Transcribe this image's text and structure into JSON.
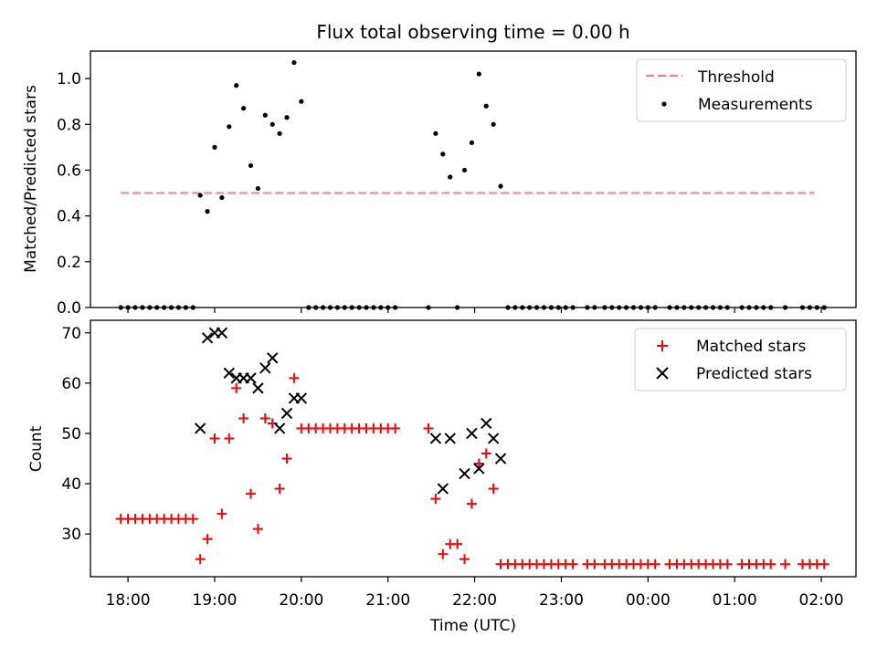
{
  "chart_data": [
    {
      "type": "scatter",
      "title": "Flux total observing time = 0.00 h",
      "xlabel": "",
      "ylabel": "Matched/Predicted stars",
      "xlim": [
        "17:34",
        "02:24"
      ],
      "ylim": [
        0,
        1.12
      ],
      "yticks": [
        "0.0",
        "0.2",
        "0.4",
        "0.6",
        "0.8",
        "1.0"
      ],
      "legend": {
        "position": "top-right",
        "entries": [
          {
            "label": "Threshold",
            "style": "dashed-line",
            "color": "#ff7f7f"
          },
          {
            "label": "Measurements",
            "style": "dot",
            "color": "#000000"
          }
        ]
      },
      "threshold": {
        "value": 0.5,
        "x_start": "17:55",
        "x_end": "01:55"
      },
      "series": [
        {
          "name": "Measurements",
          "color": "#000000",
          "points": [
            [
              "17:55",
              0
            ],
            [
              "18:00",
              0
            ],
            [
              "18:05",
              0
            ],
            [
              "18:10",
              0
            ],
            [
              "18:15",
              0
            ],
            [
              "18:20",
              0
            ],
            [
              "18:25",
              0
            ],
            [
              "18:30",
              0
            ],
            [
              "18:35",
              0
            ],
            [
              "18:40",
              0
            ],
            [
              "18:45",
              0
            ],
            [
              "18:50",
              0.49
            ],
            [
              "18:55",
              0.42
            ],
            [
              "19:00",
              0.7
            ],
            [
              "19:05",
              0.48
            ],
            [
              "19:10",
              0.79
            ],
            [
              "19:15",
              0.97
            ],
            [
              "19:20",
              0.87
            ],
            [
              "19:25",
              0.62
            ],
            [
              "19:30",
              0.52
            ],
            [
              "19:35",
              0.84
            ],
            [
              "19:40",
              0.8
            ],
            [
              "19:45",
              0.76
            ],
            [
              "19:50",
              0.83
            ],
            [
              "19:55",
              1.07
            ],
            [
              "20:00",
              0.9
            ],
            [
              "20:05",
              0
            ],
            [
              "20:10",
              0
            ],
            [
              "20:15",
              0
            ],
            [
              "20:20",
              0
            ],
            [
              "20:25",
              0
            ],
            [
              "20:30",
              0
            ],
            [
              "20:35",
              0
            ],
            [
              "20:40",
              0
            ],
            [
              "20:45",
              0
            ],
            [
              "20:50",
              0
            ],
            [
              "20:55",
              0
            ],
            [
              "21:00",
              0
            ],
            [
              "21:05",
              0
            ],
            [
              "21:28",
              0
            ],
            [
              "21:33",
              0.76
            ],
            [
              "21:38",
              0.67
            ],
            [
              "21:43",
              0.57
            ],
            [
              "21:48",
              0
            ],
            [
              "21:53",
              0.6
            ],
            [
              "21:58",
              0.72
            ],
            [
              "22:03",
              1.02
            ],
            [
              "22:08",
              0.88
            ],
            [
              "22:13",
              0.8
            ],
            [
              "22:18",
              0.53
            ],
            [
              "22:23",
              0
            ],
            [
              "22:28",
              0
            ],
            [
              "22:33",
              0
            ],
            [
              "22:38",
              0
            ],
            [
              "22:43",
              0
            ],
            [
              "22:48",
              0
            ],
            [
              "22:53",
              0
            ],
            [
              "22:58",
              0
            ],
            [
              "23:03",
              0
            ],
            [
              "23:08",
              0
            ],
            [
              "23:18",
              0
            ],
            [
              "23:23",
              0
            ],
            [
              "23:30",
              0
            ],
            [
              "23:35",
              0
            ],
            [
              "23:40",
              0
            ],
            [
              "23:45",
              0
            ],
            [
              "23:50",
              0
            ],
            [
              "23:55",
              0
            ],
            [
              "00:00",
              0
            ],
            [
              "00:05",
              0
            ],
            [
              "00:15",
              0
            ],
            [
              "00:20",
              0
            ],
            [
              "00:25",
              0
            ],
            [
              "00:30",
              0
            ],
            [
              "00:35",
              0
            ],
            [
              "00:40",
              0
            ],
            [
              "00:45",
              0
            ],
            [
              "00:50",
              0
            ],
            [
              "00:55",
              0
            ],
            [
              "01:05",
              0
            ],
            [
              "01:10",
              0
            ],
            [
              "01:15",
              0
            ],
            [
              "01:20",
              0
            ],
            [
              "01:25",
              0
            ],
            [
              "01:35",
              0
            ],
            [
              "01:47",
              0
            ],
            [
              "01:52",
              0
            ],
            [
              "01:57",
              0
            ],
            [
              "02:02",
              0
            ]
          ]
        }
      ]
    },
    {
      "type": "scatter",
      "xlabel": "Time (UTC)",
      "ylabel": "Count",
      "xlim": [
        "17:34",
        "02:24"
      ],
      "ylim": [
        21.5,
        72.5
      ],
      "xticks": [
        "18:00",
        "19:00",
        "20:00",
        "21:00",
        "22:00",
        "23:00",
        "00:00",
        "01:00",
        "02:00"
      ],
      "yticks": [
        "30",
        "40",
        "50",
        "60",
        "70"
      ],
      "legend": {
        "position": "top-right",
        "entries": [
          {
            "label": "Matched stars",
            "style": "plus",
            "color": "#ff0000"
          },
          {
            "label": "Predicted stars",
            "style": "x",
            "color": "#000000"
          }
        ]
      },
      "series": [
        {
          "name": "Matched stars",
          "marker": "plus",
          "color": "#ff0000",
          "points": [
            [
              "17:55",
              33
            ],
            [
              "18:00",
              33
            ],
            [
              "18:05",
              33
            ],
            [
              "18:10",
              33
            ],
            [
              "18:15",
              33
            ],
            [
              "18:20",
              33
            ],
            [
              "18:25",
              33
            ],
            [
              "18:30",
              33
            ],
            [
              "18:35",
              33
            ],
            [
              "18:40",
              33
            ],
            [
              "18:45",
              33
            ],
            [
              "18:50",
              25
            ],
            [
              "18:55",
              29
            ],
            [
              "19:00",
              49
            ],
            [
              "19:05",
              34
            ],
            [
              "19:10",
              49
            ],
            [
              "19:15",
              59
            ],
            [
              "19:20",
              53
            ],
            [
              "19:25",
              38
            ],
            [
              "19:30",
              31
            ],
            [
              "19:35",
              53
            ],
            [
              "19:40",
              52
            ],
            [
              "19:45",
              39
            ],
            [
              "19:50",
              45
            ],
            [
              "19:55",
              61
            ],
            [
              "20:00",
              51
            ],
            [
              "20:05",
              51
            ],
            [
              "20:10",
              51
            ],
            [
              "20:15",
              51
            ],
            [
              "20:20",
              51
            ],
            [
              "20:25",
              51
            ],
            [
              "20:30",
              51
            ],
            [
              "20:35",
              51
            ],
            [
              "20:40",
              51
            ],
            [
              "20:45",
              51
            ],
            [
              "20:50",
              51
            ],
            [
              "20:55",
              51
            ],
            [
              "21:00",
              51
            ],
            [
              "21:05",
              51
            ],
            [
              "21:28",
              51
            ],
            [
              "21:33",
              37
            ],
            [
              "21:38",
              26
            ],
            [
              "21:43",
              28
            ],
            [
              "21:48",
              28
            ],
            [
              "21:53",
              25
            ],
            [
              "21:58",
              36
            ],
            [
              "22:03",
              44
            ],
            [
              "22:08",
              46
            ],
            [
              "22:13",
              39
            ],
            [
              "22:18",
              24
            ],
            [
              "22:23",
              24
            ],
            [
              "22:28",
              24
            ],
            [
              "22:33",
              24
            ],
            [
              "22:38",
              24
            ],
            [
              "22:43",
              24
            ],
            [
              "22:48",
              24
            ],
            [
              "22:53",
              24
            ],
            [
              "22:58",
              24
            ],
            [
              "23:03",
              24
            ],
            [
              "23:08",
              24
            ],
            [
              "23:18",
              24
            ],
            [
              "23:23",
              24
            ],
            [
              "23:30",
              24
            ],
            [
              "23:35",
              24
            ],
            [
              "23:40",
              24
            ],
            [
              "23:45",
              24
            ],
            [
              "23:50",
              24
            ],
            [
              "23:55",
              24
            ],
            [
              "00:00",
              24
            ],
            [
              "00:05",
              24
            ],
            [
              "00:15",
              24
            ],
            [
              "00:20",
              24
            ],
            [
              "00:25",
              24
            ],
            [
              "00:30",
              24
            ],
            [
              "00:35",
              24
            ],
            [
              "00:40",
              24
            ],
            [
              "00:45",
              24
            ],
            [
              "00:50",
              24
            ],
            [
              "00:55",
              24
            ],
            [
              "01:05",
              24
            ],
            [
              "01:10",
              24
            ],
            [
              "01:15",
              24
            ],
            [
              "01:20",
              24
            ],
            [
              "01:25",
              24
            ],
            [
              "01:35",
              24
            ],
            [
              "01:47",
              24
            ],
            [
              "01:52",
              24
            ],
            [
              "01:57",
              24
            ],
            [
              "02:02",
              24
            ]
          ]
        },
        {
          "name": "Predicted stars",
          "marker": "x",
          "color": "#000000",
          "points": [
            [
              "18:50",
              51
            ],
            [
              "18:55",
              69
            ],
            [
              "19:00",
              70
            ],
            [
              "19:05",
              70
            ],
            [
              "19:10",
              62
            ],
            [
              "19:15",
              61
            ],
            [
              "19:20",
              61
            ],
            [
              "19:25",
              61
            ],
            [
              "19:30",
              59
            ],
            [
              "19:35",
              63
            ],
            [
              "19:40",
              65
            ],
            [
              "19:45",
              51
            ],
            [
              "19:50",
              54
            ],
            [
              "19:55",
              57
            ],
            [
              "20:00",
              57
            ],
            [
              "21:33",
              49
            ],
            [
              "21:38",
              39
            ],
            [
              "21:43",
              49
            ],
            [
              "21:53",
              42
            ],
            [
              "21:58",
              50
            ],
            [
              "22:03",
              43
            ],
            [
              "22:08",
              52
            ],
            [
              "22:13",
              49
            ],
            [
              "22:18",
              45
            ]
          ]
        }
      ]
    }
  ]
}
